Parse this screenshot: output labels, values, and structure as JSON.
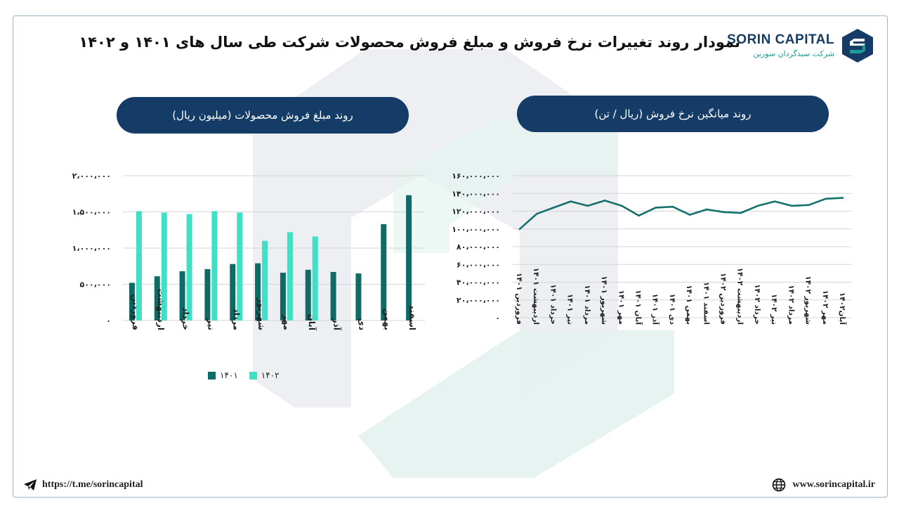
{
  "header": {
    "brand_name": "SORIN CAPITAL",
    "brand_subtitle": "شرکت سبدگردان سورین",
    "title": "نمودار روند تغییرات نرخ فروش و مبلغ فروش محصولات شرکت طی سال های ۱۴۰۱ و ۱۴۰۲",
    "brand_color": "#143c66",
    "accent_color": "#1d9e94"
  },
  "left_panel": {
    "title": "روند مبلغ فروش محصولات (میلیون ریال)"
  },
  "right_panel": {
    "title": "روند میانگین نرخ فروش (ریال / تن)"
  },
  "chart_data": [
    {
      "type": "bar",
      "title": "روند مبلغ فروش محصولات (میلیون ریال)",
      "categories": [
        "فروردین",
        "اردیبهشت",
        "خرداد",
        "تیر",
        "مرداد",
        "شهریور",
        "مهر",
        "آبان",
        "آذر",
        "دی",
        "بهمن",
        "اسفند"
      ],
      "series": [
        {
          "name": "۱۴۰۱",
          "color": "#0e6b66",
          "values": [
            520000,
            610000,
            680000,
            710000,
            780000,
            790000,
            660000,
            700000,
            670000,
            650000,
            1330000,
            1730000
          ]
        },
        {
          "name": "۱۴۰۲",
          "color": "#3fe0c5",
          "values": [
            1510000,
            1490000,
            1470000,
            1510000,
            1490000,
            1100000,
            1220000,
            1160000,
            null,
            null,
            null,
            null
          ]
        }
      ],
      "ylim": [
        0,
        2000000
      ],
      "yticks": [
        0,
        500000,
        1000000,
        1500000,
        2000000
      ],
      "ytick_labels": [
        "۰",
        "۵۰۰،۰۰۰",
        "۱،۰۰۰،۰۰۰",
        "۱،۵۰۰،۰۰۰",
        "۲،۰۰۰،۰۰۰"
      ],
      "legend": "bottom",
      "grid": true
    },
    {
      "type": "line",
      "title": "روند میانگین نرخ فروش (ریال / تن)",
      "categories": [
        "فروردین ۱۴۰۱",
        "اردیبهشت ۱۴۰۱",
        "خرداد ۱۴۰۱",
        "تیر ۱۴۰۱",
        "مرداد ۱۴۰۱",
        "شهریور ۱۴۰۱",
        "مهر ۱۴۰۱",
        "آبان ۱۴۰۱",
        "آذر ۱۴۰۱",
        "دی ۱۴۰۱",
        "بهمن ۱۴۰۱",
        "اسفند ۱۴۰۱",
        "فروردین ۱۴۰۲",
        "اردیبهشت ۱۴۰۲",
        "خرداد ۱۴۰۲",
        "تیر ۱۴۰۲",
        "مرداد ۱۴۰۲",
        "شهریور ۱۴۰۲",
        "مهر ۱۴۰۲",
        "آبان۱۴۰۲"
      ],
      "series": [
        {
          "color": "#15716b",
          "values": [
            100000000,
            117000000,
            124000000,
            131000000,
            126000000,
            132000000,
            126000000,
            115000000,
            124000000,
            125000000,
            116000000,
            122000000,
            119000000,
            118000000,
            126000000,
            131000000,
            126000000,
            127000000,
            134000000,
            135000000
          ]
        }
      ],
      "ylim": [
        0,
        160000000
      ],
      "yticks": [
        0,
        20000000,
        40000000,
        60000000,
        80000000,
        100000000,
        120000000,
        140000000,
        160000000
      ],
      "ytick_labels": [
        "۰",
        "۲۰،۰۰۰،۰۰۰",
        "۴۰،۰۰۰،۰۰۰",
        "۶۰،۰۰۰،۰۰۰",
        "۸۰،۰۰۰،۰۰۰",
        "۱۰۰،۰۰۰،۰۰۰",
        "۱۲۰،۰۰۰،۰۰۰",
        "۱۴۰،۰۰۰،۰۰۰",
        "۱۶۰،۰۰۰،۰۰۰"
      ],
      "grid": true
    }
  ],
  "footer": {
    "telegram_link": "https://t.me/sorincapital",
    "website": "www.sorincapital.ir",
    "telegram_icon": "paper-plane-icon",
    "website_icon": "globe-icon"
  }
}
